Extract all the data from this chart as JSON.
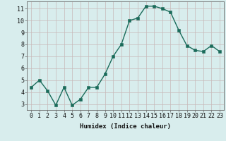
{
  "x": [
    0,
    1,
    2,
    3,
    4,
    5,
    6,
    7,
    8,
    9,
    10,
    11,
    12,
    13,
    14,
    15,
    16,
    17,
    18,
    19,
    20,
    21,
    22,
    23
  ],
  "y": [
    4.4,
    5.0,
    4.1,
    2.9,
    4.4,
    2.9,
    3.4,
    4.4,
    4.4,
    5.5,
    7.0,
    8.0,
    10.0,
    10.2,
    11.2,
    11.2,
    11.0,
    10.7,
    9.2,
    7.9,
    7.5,
    7.4,
    7.9,
    7.4
  ],
  "line_color": "#1a6b5a",
  "marker_color": "#1a6b5a",
  "bg_color": "#d8eded",
  "grid_color_major": "#c8b8b8",
  "xlabel": "Humidex (Indice chaleur)",
  "xlim": [
    -0.5,
    23.5
  ],
  "ylim": [
    2.5,
    11.6
  ],
  "yticks": [
    3,
    4,
    5,
    6,
    7,
    8,
    9,
    10,
    11
  ],
  "xticks": [
    0,
    1,
    2,
    3,
    4,
    5,
    6,
    7,
    8,
    9,
    10,
    11,
    12,
    13,
    14,
    15,
    16,
    17,
    18,
    19,
    20,
    21,
    22,
    23
  ],
  "xlabel_fontsize": 6.5,
  "tick_fontsize": 6.0,
  "line_width": 1.0,
  "marker_size": 2.5
}
